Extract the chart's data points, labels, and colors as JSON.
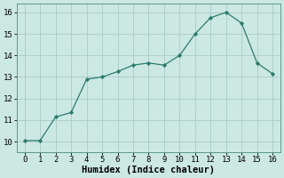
{
  "x": [
    0,
    1,
    2,
    3,
    4,
    5,
    6,
    7,
    8,
    9,
    10,
    11,
    12,
    13,
    14,
    15,
    16
  ],
  "y": [
    10.05,
    10.05,
    11.15,
    11.35,
    12.9,
    13.0,
    13.25,
    13.55,
    13.65,
    13.55,
    14.0,
    15.0,
    15.75,
    16.0,
    15.5,
    13.65,
    13.15
  ],
  "line_color": "#2a7d6e",
  "marker": "D",
  "marker_size": 2.2,
  "xlabel": "Humidex (Indice chaleur)",
  "xlabel_fontsize": 7.5,
  "xlabel_fontweight": "bold",
  "xlim": [
    -0.5,
    16.5
  ],
  "ylim": [
    9.5,
    16.4
  ],
  "xticks": [
    0,
    1,
    2,
    3,
    4,
    5,
    6,
    7,
    8,
    9,
    10,
    11,
    12,
    13,
    14,
    15,
    16
  ],
  "yticks": [
    10,
    11,
    12,
    13,
    14,
    15,
    16
  ],
  "grid_color": "#aecfca",
  "bg_color": "#cce8e3",
  "tick_fontsize": 6.5,
  "spine_color": "#5a9a8a"
}
